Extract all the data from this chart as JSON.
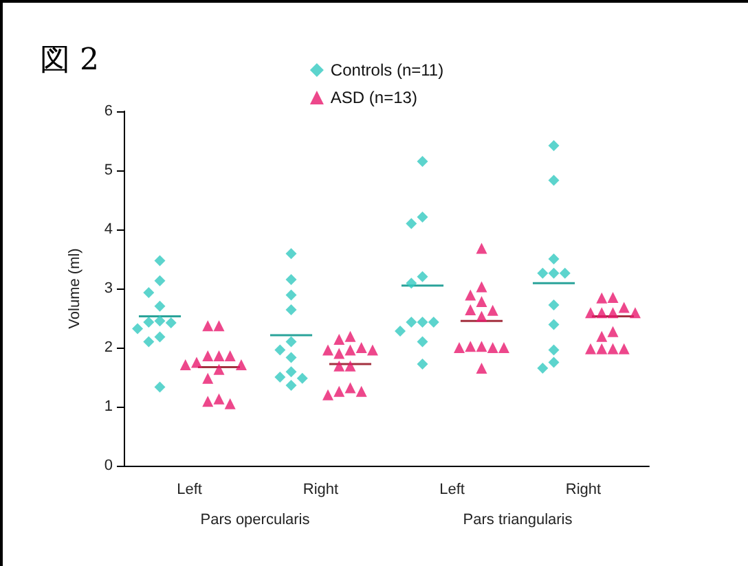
{
  "chart_data": [
    {
      "type": "scatter",
      "title": "図 2",
      "ylabel": "Volume (ml)",
      "xlabel": "Pars opercularis",
      "categories": [
        "Left",
        "Right"
      ],
      "ylim": [
        0,
        6
      ],
      "yticks": [
        0,
        1,
        2,
        3,
        4,
        5,
        6
      ],
      "legend": "top",
      "grid": false,
      "series": [
        {
          "name": "Controls (n=11)",
          "color": "#33c9c0",
          "marker": "diamond",
          "x": [
            "Left",
            "Left",
            "Left",
            "Left",
            "Left",
            "Left",
            "Left",
            "Left",
            "Left",
            "Left",
            "Left",
            "Right",
            "Right",
            "Right",
            "Right",
            "Right",
            "Right",
            "Right",
            "Right",
            "Right",
            "Right",
            "Right"
          ],
          "values": [
            3.47,
            3.13,
            2.93,
            2.7,
            2.45,
            2.43,
            2.42,
            2.32,
            2.18,
            2.1,
            1.33,
            3.59,
            3.15,
            2.89,
            2.64,
            2.1,
            1.96,
            1.83,
            1.59,
            1.5,
            1.48,
            1.36
          ]
        },
        {
          "name": "ASD (n=13)",
          "color": "#e8196e",
          "marker": "triangle",
          "x": [
            "Left",
            "Left",
            "Left",
            "Left",
            "Left",
            "Left",
            "Left",
            "Left",
            "Left",
            "Left",
            "Left",
            "Left",
            "Left",
            "Right",
            "Right",
            "Right",
            "Right",
            "Right",
            "Right",
            "Right",
            "Right",
            "Right",
            "Right",
            "Right",
            "Right",
            "Right"
          ],
          "values": [
            2.37,
            2.37,
            1.86,
            1.86,
            1.86,
            1.75,
            1.71,
            1.71,
            1.63,
            1.48,
            1.13,
            1.09,
            1.05,
            2.19,
            2.14,
            2.0,
            1.96,
            1.96,
            1.96,
            1.9,
            1.69,
            1.69,
            1.32,
            1.26,
            1.26,
            1.2
          ]
        },
        {
          "type": "box",
          "color": "#2aa39a",
          "boxes": [
            {
              "low": 2.53,
              "q1": 2.53,
              "median": 2.53,
              "q3": 2.53,
              "high": 2.53
            },
            {
              "low": 2.21,
              "q1": 2.21,
              "median": 2.21,
              "q3": 2.21,
              "high": 2.21
            }
          ]
        },
        {
          "type": "box",
          "color": "#a3303f",
          "boxes": [
            {
              "low": 1.67,
              "q1": 1.67,
              "median": 1.67,
              "q3": 1.67,
              "high": 1.67
            },
            {
              "low": 1.72,
              "q1": 1.72,
              "median": 1.72,
              "q3": 1.72,
              "high": 1.72
            }
          ]
        }
      ]
    },
    {
      "type": "scatter",
      "xlabel": "Pars triangularis",
      "categories": [
        "Left",
        "Right"
      ],
      "ylim": [
        0,
        6
      ],
      "yticks": [
        0,
        1,
        2,
        3,
        4,
        5,
        6
      ],
      "tick_labels": "x",
      "series": [
        {
          "color": "#33c9c0",
          "marker": "diamond",
          "x": [
            "Left",
            "Left",
            "Left",
            "Left",
            "Left",
            "Left",
            "Left",
            "Left",
            "Left",
            "Left",
            "Left",
            "Right",
            "Right",
            "Right",
            "Right",
            "Right",
            "Right",
            "Right",
            "Right",
            "Right",
            "Right",
            "Right"
          ],
          "values": [
            5.15,
            4.21,
            4.1,
            3.2,
            3.09,
            2.43,
            2.43,
            2.43,
            2.28,
            2.1,
            1.72,
            5.42,
            4.83,
            3.5,
            3.26,
            3.26,
            3.26,
            2.72,
            2.39,
            1.96,
            1.75,
            1.65
          ]
        },
        {
          "color": "#e8196e",
          "marker": "triangle",
          "x": [
            "Left",
            "Left",
            "Left",
            "Left",
            "Left",
            "Left",
            "Left",
            "Left",
            "Left",
            "Left",
            "Left",
            "Left",
            "Left",
            "Right",
            "Right",
            "Right",
            "Right",
            "Right",
            "Right",
            "Right",
            "Right",
            "Right",
            "Right",
            "Right",
            "Right",
            "Right"
          ],
          "values": [
            3.68,
            3.03,
            2.89,
            2.78,
            2.64,
            2.63,
            2.53,
            2.02,
            2.02,
            2.0,
            2.0,
            2.0,
            1.65,
            2.85,
            2.84,
            2.68,
            2.59,
            2.59,
            2.59,
            2.59,
            2.27,
            2.19,
            1.98,
            1.98,
            1.98,
            1.98
          ]
        },
        {
          "type": "box",
          "color": "#2aa39a",
          "boxes": [
            {
              "low": 3.05,
              "q1": 3.05,
              "median": 3.05,
              "q3": 3.05,
              "high": 3.05
            },
            {
              "low": 3.09,
              "q1": 3.09,
              "median": 3.09,
              "q3": 3.09,
              "high": 3.09
            }
          ]
        },
        {
          "type": "box",
          "color": "#a3303f",
          "boxes": [
            {
              "low": 2.45,
              "q1": 2.45,
              "median": 2.45,
              "q3": 2.45,
              "high": 2.45
            },
            {
              "low": 2.53,
              "q1": 2.53,
              "median": 2.53,
              "q3": 2.53,
              "high": 2.53
            }
          ]
        }
      ]
    }
  ]
}
